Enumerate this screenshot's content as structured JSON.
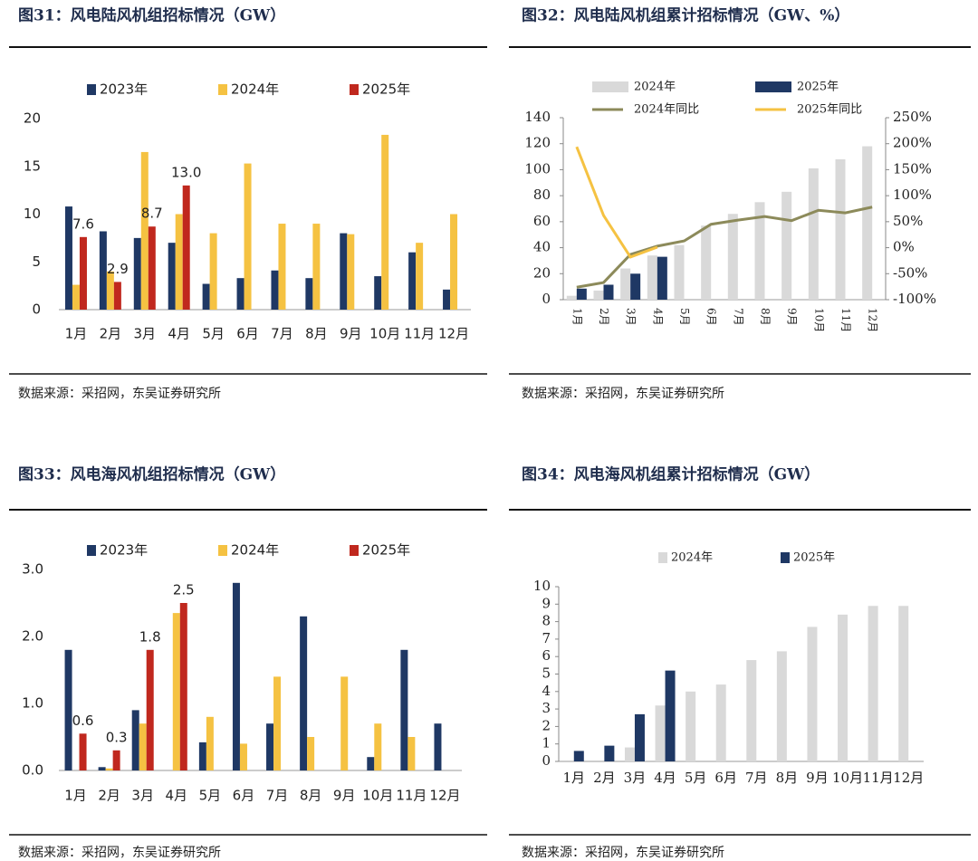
{
  "chart_data": [
    {
      "type": "bar",
      "title": "图31：风电陆风机组招标情况（GW）",
      "source": "数据来源：采招网，东吴证券研究所",
      "categories": [
        "1月",
        "2月",
        "3月",
        "4月",
        "5月",
        "6月",
        "7月",
        "8月",
        "9月",
        "10月",
        "11月",
        "12月"
      ],
      "ylim": [
        0,
        20
      ],
      "yticks": [
        0,
        5,
        10,
        15,
        20
      ],
      "grid": false,
      "legend": "top",
      "series": [
        {
          "name": "2023年",
          "color": "#1f3864",
          "values": [
            10.8,
            8.2,
            7.5,
            7.0,
            2.7,
            3.3,
            4.1,
            3.3,
            8.0,
            3.5,
            6.0,
            2.1
          ]
        },
        {
          "name": "2024年",
          "color": "#f5c242",
          "values": [
            2.6,
            4.0,
            16.5,
            10.0,
            8.0,
            15.3,
            9.0,
            9.0,
            7.9,
            18.3,
            7.0,
            10.0
          ]
        },
        {
          "name": "2025年",
          "color": "#c0281e",
          "values": [
            7.6,
            2.9,
            8.7,
            13.0,
            null,
            null,
            null,
            null,
            null,
            null,
            null,
            null
          ],
          "value_labels": [
            "7.6",
            "2.9",
            "8.7",
            "13.0",
            null,
            null,
            null,
            null,
            null,
            null,
            null,
            null
          ]
        }
      ]
    },
    {
      "type": "bar",
      "title": "图32：风电陆风机组累计招标情况（GW、%）",
      "source": "数据来源：采招网，东吴证券研究所",
      "categories": [
        "1月",
        "2月",
        "3月",
        "4月",
        "5月",
        "6月",
        "7月",
        "8月",
        "9月",
        "10月",
        "11月",
        "12月"
      ],
      "ylim": [
        0,
        140
      ],
      "yticks": [
        0,
        20,
        40,
        60,
        80,
        100,
        120,
        140
      ],
      "y2lim": [
        -100,
        250
      ],
      "y2ticks": [
        {
          "value": -100,
          "label": "-100%"
        },
        {
          "value": -50,
          "label": "-50%"
        },
        {
          "value": 0,
          "label": "0%"
        },
        {
          "value": 50,
          "label": "50%"
        },
        {
          "value": 100,
          "label": "100%"
        },
        {
          "value": 150,
          "label": "150%"
        },
        {
          "value": 200,
          "label": "200%"
        },
        {
          "value": 250,
          "label": "250%"
        }
      ],
      "grid": false,
      "legend": "top",
      "series": [
        {
          "name": "2024年",
          "color": "#d9d9d9",
          "values": [
            3,
            7,
            24,
            34,
            42,
            57,
            66,
            75,
            83,
            101,
            108,
            118
          ]
        },
        {
          "name": "2025年",
          "color": "#1f3864",
          "values": [
            8.5,
            11.5,
            20,
            33,
            null,
            null,
            null,
            null,
            null,
            null,
            null,
            null
          ]
        },
        {
          "name": "2024年同比",
          "color": "#8c8a5a",
          "type": "line",
          "axis": "y2",
          "values": [
            -76,
            -67,
            -13,
            3,
            13,
            45,
            53,
            60,
            52,
            72,
            67,
            78
          ]
        },
        {
          "name": "2025年同比",
          "color": "#f5c242",
          "type": "line",
          "axis": "y2",
          "values": [
            194,
            62,
            -18,
            1,
            null,
            null,
            null,
            null,
            null,
            null,
            null,
            null
          ]
        }
      ]
    },
    {
      "type": "bar",
      "title": "图33：风电海风机组招标情况（GW）",
      "source": "数据来源：采招网，东吴证券研究所",
      "categories": [
        "1月",
        "2月",
        "3月",
        "4月",
        "5月",
        "6月",
        "7月",
        "8月",
        "9月",
        "10月",
        "11月",
        "12月"
      ],
      "ylim": [
        0,
        3
      ],
      "yticks": [
        {
          "value": 0,
          "label": "0.0"
        },
        {
          "value": 1,
          "label": "1.0"
        },
        {
          "value": 2,
          "label": "2.0"
        },
        {
          "value": 3,
          "label": "3.0"
        }
      ],
      "grid": false,
      "legend": "top",
      "series": [
        {
          "name": "2023年",
          "color": "#1f3864",
          "values": [
            1.8,
            0.05,
            0.9,
            0,
            0.42,
            2.8,
            0.7,
            2.3,
            0,
            0.2,
            1.8,
            0.7
          ]
        },
        {
          "name": "2024年",
          "color": "#f5c242",
          "values": [
            0,
            0.03,
            0.7,
            2.35,
            0.8,
            0.4,
            1.4,
            0.5,
            1.4,
            0.7,
            0.5,
            0
          ]
        },
        {
          "name": "2025年",
          "color": "#c0281e",
          "values": [
            0.55,
            0.3,
            1.8,
            2.5,
            null,
            null,
            null,
            null,
            null,
            null,
            null,
            null
          ],
          "value_labels": [
            "0.6",
            "0.3",
            "1.8",
            "2.5",
            null,
            null,
            null,
            null,
            null,
            null,
            null,
            null
          ]
        }
      ]
    },
    {
      "type": "bar",
      "title": "图34：风电海风机组累计招标情况（GW）",
      "source": "数据来源：采招网，东吴证券研究所",
      "categories": [
        "1月",
        "2月",
        "3月",
        "4月",
        "5月",
        "6月",
        "7月",
        "8月",
        "9月",
        "10月",
        "11月",
        "12月"
      ],
      "ylim": [
        0,
        10
      ],
      "yticks": [
        0,
        1,
        2,
        3,
        4,
        5,
        6,
        7,
        8,
        9,
        10
      ],
      "grid": false,
      "legend": "top",
      "series": [
        {
          "name": "2024年",
          "color": "#d9d9d9",
          "values": [
            0,
            0,
            0.8,
            3.2,
            4.0,
            4.4,
            5.8,
            6.3,
            7.7,
            8.4,
            8.9,
            8.9
          ]
        },
        {
          "name": "2025年",
          "color": "#1f3864",
          "values": [
            0.6,
            0.9,
            2.7,
            5.2,
            null,
            null,
            null,
            null,
            null,
            null,
            null,
            null
          ]
        }
      ]
    }
  ]
}
